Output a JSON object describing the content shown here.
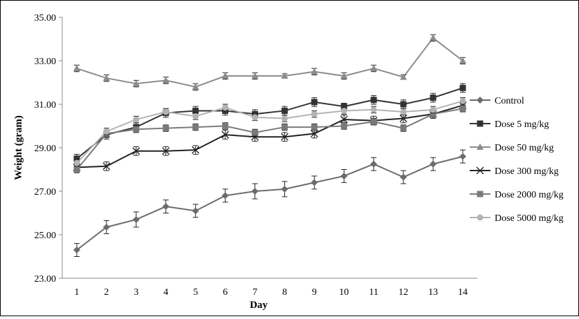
{
  "chart_data": {
    "type": "line",
    "title": "",
    "xlabel": "Day",
    "ylabel": "Weight (gram)",
    "ylim": [
      23.0,
      35.0
    ],
    "yticks": [
      23.0,
      25.0,
      27.0,
      29.0,
      31.0,
      33.0,
      35.0
    ],
    "ytick_labels": [
      "23.00",
      "25.00",
      "27.00",
      "29.00",
      "31.00",
      "33.00",
      "35.00"
    ],
    "x": [
      1,
      2,
      3,
      4,
      5,
      6,
      7,
      8,
      9,
      10,
      11,
      12,
      13,
      14
    ],
    "x_labels": [
      "1",
      "2",
      "3",
      "4",
      "5",
      "6",
      "7",
      "8",
      "9",
      "10",
      "11",
      "12",
      "13",
      "14"
    ],
    "grid": false,
    "error_bars": true,
    "legend_position": "right",
    "series": [
      {
        "name": "Control",
        "marker": "diamond",
        "color": "#6b6b6b",
        "values": [
          24.3,
          25.35,
          25.7,
          26.3,
          26.1,
          26.8,
          27.0,
          27.1,
          27.4,
          27.7,
          28.25,
          27.65,
          28.25,
          28.6
        ],
        "errors": [
          0.3,
          0.3,
          0.35,
          0.3,
          0.3,
          0.3,
          0.35,
          0.35,
          0.3,
          0.3,
          0.3,
          0.3,
          0.3,
          0.3
        ]
      },
      {
        "name": "Dose 5 mg/kg",
        "marker": "square",
        "color": "#333333",
        "values": [
          28.5,
          29.6,
          29.95,
          30.6,
          30.7,
          30.7,
          30.55,
          30.7,
          31.1,
          30.9,
          31.2,
          31.0,
          31.3,
          31.75
        ],
        "errors": [
          0.2,
          0.2,
          0.2,
          0.2,
          0.2,
          0.2,
          0.2,
          0.2,
          0.2,
          0.15,
          0.2,
          0.2,
          0.2,
          0.2
        ]
      },
      {
        "name": "Dose 50 mg/kg",
        "marker": "triangle",
        "color": "#8c8c8c",
        "values": [
          32.65,
          32.2,
          31.95,
          32.1,
          31.8,
          32.3,
          32.3,
          32.3,
          32.5,
          32.3,
          32.65,
          32.25,
          34.05,
          33.0
        ],
        "errors": [
          0.15,
          0.15,
          0.15,
          0.15,
          0.15,
          0.15,
          0.15,
          0.1,
          0.15,
          0.15,
          0.15,
          0.1,
          0.15,
          0.15
        ]
      },
      {
        "name": "Dose 300 mg/kg",
        "marker": "x",
        "color": "#222222",
        "values": [
          28.1,
          28.15,
          28.85,
          28.85,
          28.9,
          29.6,
          29.5,
          29.5,
          29.65,
          30.3,
          30.25,
          30.35,
          30.55,
          30.95
        ],
        "errors": [
          0.2,
          0.2,
          0.2,
          0.2,
          0.2,
          0.2,
          0.2,
          0.2,
          0.2,
          0.2,
          0.2,
          0.2,
          0.2,
          0.2
        ]
      },
      {
        "name": "Dose 2000 mg/kg",
        "marker": "square",
        "color": "#7a7a7a",
        "values": [
          28.0,
          29.65,
          29.85,
          29.9,
          29.95,
          30.0,
          29.7,
          29.95,
          29.95,
          30.0,
          30.2,
          29.9,
          30.55,
          30.8
        ],
        "errors": [
          0.15,
          0.15,
          0.15,
          0.15,
          0.15,
          0.15,
          0.15,
          0.15,
          0.15,
          0.15,
          0.15,
          0.15,
          0.15,
          0.15
        ]
      },
      {
        "name": "Dose 5000 mg/kg",
        "marker": "circle",
        "color": "#b3b3b3",
        "values": [
          28.3,
          29.75,
          30.3,
          30.65,
          30.45,
          30.85,
          30.4,
          30.35,
          30.55,
          30.7,
          30.75,
          30.65,
          30.75,
          31.15
        ],
        "errors": [
          0.15,
          0.15,
          0.15,
          0.15,
          0.15,
          0.15,
          0.15,
          0.15,
          0.15,
          0.15,
          0.15,
          0.15,
          0.15,
          0.15
        ]
      }
    ]
  }
}
